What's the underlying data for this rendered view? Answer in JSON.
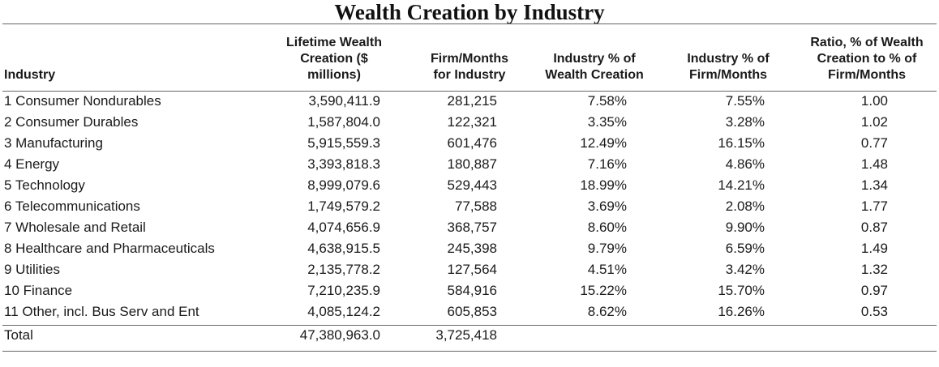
{
  "chart_data": {
    "type": "table",
    "title": "Wealth Creation by Industry",
    "columns": [
      "Industry",
      "Lifetime Wealth Creation ($ millions)",
      "Firm/Months for Industry",
      "Industry % of Wealth Creation",
      "Industry % of Firm/Months",
      "Ratio, % of Wealth Creation to % of Firm/Months"
    ],
    "rows": [
      [
        "1 Consumer Nondurables",
        "3,590,411.9",
        "281,215",
        "7.58%",
        "7.55%",
        "1.00"
      ],
      [
        "2 Consumer Durables",
        "1,587,804.0",
        "122,321",
        "3.35%",
        "3.28%",
        "1.02"
      ],
      [
        "3 Manufacturing",
        "5,915,559.3",
        "601,476",
        "12.49%",
        "16.15%",
        "0.77"
      ],
      [
        "4 Energy",
        "3,393,818.3",
        "180,887",
        "7.16%",
        "4.86%",
        "1.48"
      ],
      [
        "5 Technology",
        "8,999,079.6",
        "529,443",
        "18.99%",
        "14.21%",
        "1.34"
      ],
      [
        "6 Telecommunications",
        "1,749,579.2",
        "77,588",
        "3.69%",
        "2.08%",
        "1.77"
      ],
      [
        "7 Wholesale and Retail",
        "4,074,656.9",
        "368,757",
        "8.60%",
        "9.90%",
        "0.87"
      ],
      [
        "8 Healthcare and Pharmaceuticals",
        "4,638,915.5",
        "245,398",
        "9.79%",
        "6.59%",
        "1.49"
      ],
      [
        "9 Utilities",
        "2,135,778.2",
        "127,564",
        "4.51%",
        "3.42%",
        "1.32"
      ],
      [
        "10 Finance",
        "7,210,235.9",
        "584,916",
        "15.22%",
        "15.70%",
        "0.97"
      ],
      [
        "11 Other, incl. Bus Serv and Ent",
        "4,085,124.2",
        "605,853",
        "8.62%",
        "16.26%",
        "0.53"
      ]
    ],
    "total": [
      "Total",
      "47,380,963.0",
      "3,725,418",
      "",
      "",
      ""
    ]
  }
}
